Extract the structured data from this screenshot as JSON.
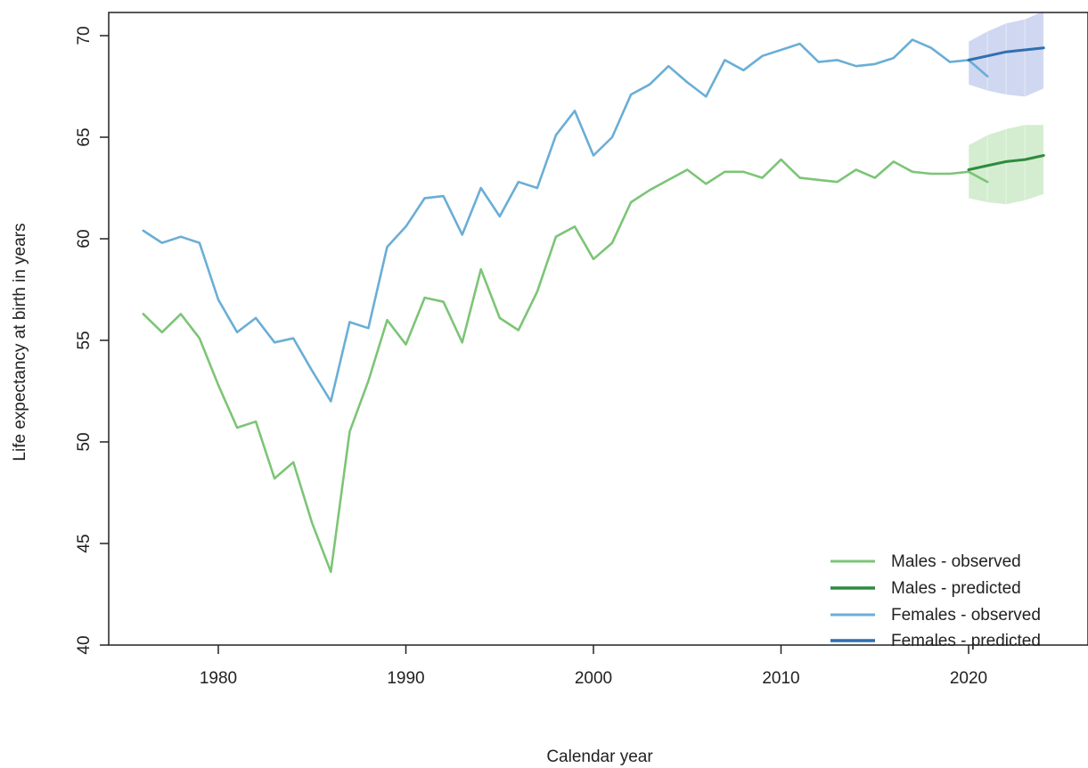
{
  "chart_data": {
    "type": "line",
    "title": "",
    "xlabel": "Calendar year",
    "ylabel": "Life expectancy at birth in years",
    "xlim": [
      1973.5,
      2026
    ],
    "ylim": [
      39.3,
      71.2
    ],
    "xticks": [
      1980,
      1990,
      2000,
      2010,
      2020
    ],
    "yticks": [
      40,
      45,
      50,
      55,
      60,
      65,
      70
    ],
    "grid": false,
    "legend_position": "bottom-right",
    "colors": {
      "males_observed": "#7cc576",
      "males_predicted": "#2e8b3e",
      "females_observed": "#6aaed6",
      "females_predicted": "#2f6fb0",
      "males_band": "#cdeac8",
      "females_band": "#c8d0ee"
    },
    "series": [
      {
        "key": "males_observed",
        "name": "Males  - observed",
        "x": [
          1976,
          1977,
          1978,
          1979,
          1980,
          1981,
          1982,
          1983,
          1984,
          1985,
          1986,
          1987,
          1988,
          1989,
          1990,
          1991,
          1992,
          1993,
          1994,
          1995,
          1996,
          1997,
          1998,
          1999,
          2000,
          2001,
          2002,
          2003,
          2004,
          2005,
          2006,
          2007,
          2008,
          2009,
          2010,
          2011,
          2012,
          2013,
          2014,
          2015,
          2016,
          2017,
          2018,
          2019,
          2020,
          2021
        ],
        "y": [
          56.3,
          55.4,
          56.3,
          55.1,
          52.8,
          50.7,
          51.0,
          48.2,
          49.0,
          46.0,
          43.6,
          50.5,
          53.0,
          56.0,
          54.8,
          57.1,
          56.9,
          54.9,
          58.5,
          56.1,
          55.5,
          57.4,
          60.1,
          60.6,
          59.0,
          59.8,
          61.8,
          62.4,
          62.9,
          63.4,
          62.7,
          63.3,
          63.3,
          63.0,
          63.9,
          63.0,
          62.9,
          62.8,
          63.4,
          63.0,
          63.8,
          63.3,
          63.2,
          63.2,
          63.3,
          62.8
        ]
      },
      {
        "key": "males_predicted",
        "name": "Males - predicted",
        "x": [
          2020,
          2021,
          2022,
          2023,
          2024
        ],
        "y": [
          63.4,
          63.6,
          63.8,
          63.9,
          64.1
        ],
        "lower": [
          62.0,
          61.8,
          61.7,
          61.9,
          62.2
        ],
        "upper": [
          64.6,
          65.1,
          65.4,
          65.6,
          65.6
        ]
      },
      {
        "key": "females_observed",
        "name": "Females  - observed",
        "x": [
          1976,
          1977,
          1978,
          1979,
          1980,
          1981,
          1982,
          1983,
          1984,
          1985,
          1986,
          1987,
          1988,
          1989,
          1990,
          1991,
          1992,
          1993,
          1994,
          1995,
          1996,
          1997,
          1998,
          1999,
          2000,
          2001,
          2002,
          2003,
          2004,
          2005,
          2006,
          2007,
          2008,
          2009,
          2010,
          2011,
          2012,
          2013,
          2014,
          2015,
          2016,
          2017,
          2018,
          2019,
          2020,
          2021
        ],
        "y": [
          60.4,
          59.8,
          60.1,
          59.8,
          57.0,
          55.4,
          56.1,
          54.9,
          55.1,
          53.5,
          52.0,
          55.9,
          55.6,
          59.6,
          60.6,
          62.0,
          62.1,
          60.2,
          62.5,
          61.1,
          62.8,
          62.5,
          65.1,
          66.3,
          64.1,
          65.0,
          67.1,
          67.6,
          68.5,
          67.7,
          67.0,
          68.8,
          68.3,
          69.0,
          69.3,
          69.6,
          68.7,
          68.8,
          68.5,
          68.6,
          68.9,
          69.8,
          69.4,
          68.7,
          68.8,
          68.0
        ]
      },
      {
        "key": "females_predicted",
        "name": "Females - predicted",
        "x": [
          2020,
          2021,
          2022,
          2023,
          2024
        ],
        "y": [
          68.8,
          69.0,
          69.2,
          69.3,
          69.4
        ],
        "lower": [
          67.6,
          67.3,
          67.1,
          67.0,
          67.4
        ],
        "upper": [
          69.7,
          70.2,
          70.6,
          70.8,
          71.2
        ]
      }
    ]
  }
}
